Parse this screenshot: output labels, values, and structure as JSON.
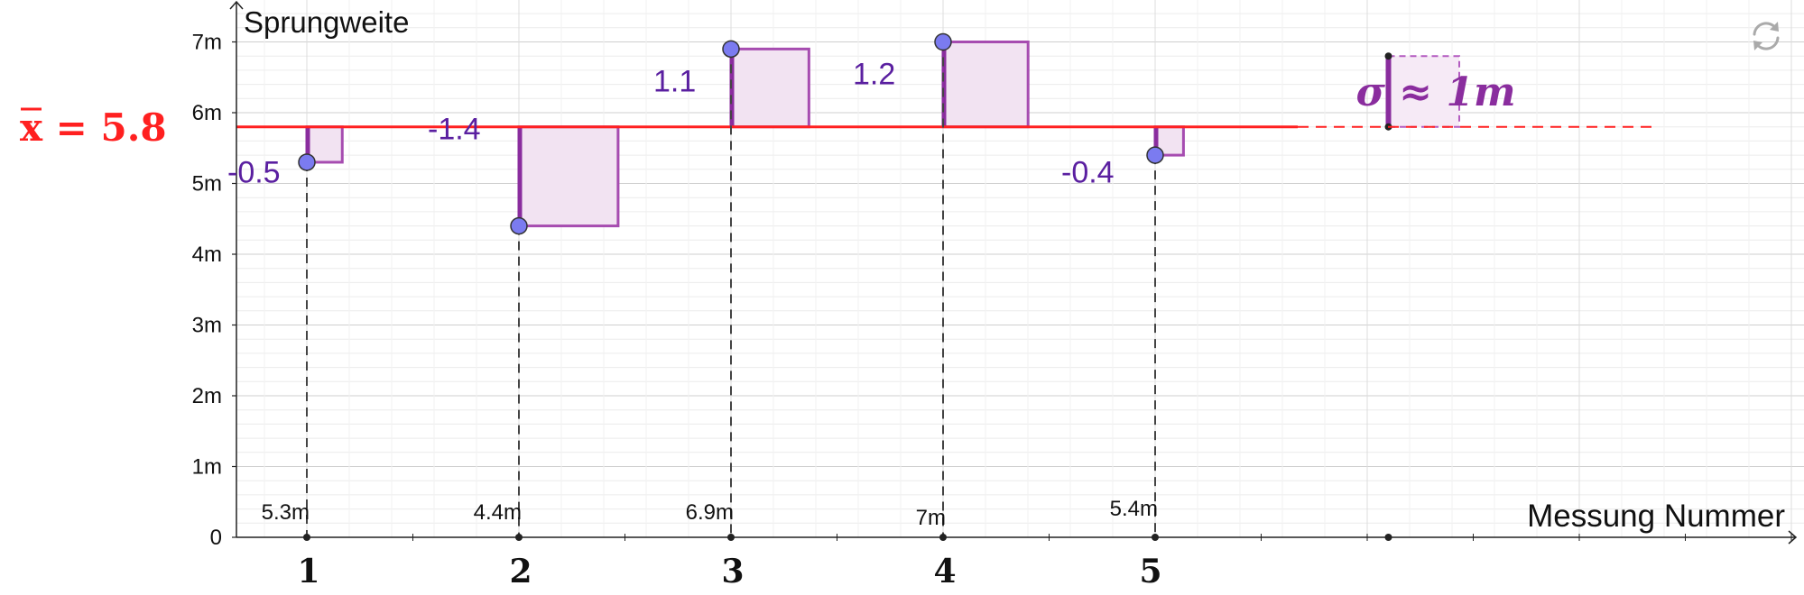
{
  "chart_data": {
    "type": "scatter",
    "ylabel": "Sprungweite",
    "xlabel": "Messung Nummer",
    "x_ticks": [
      "1",
      "2",
      "3",
      "4",
      "5"
    ],
    "y_ticks": [
      "0",
      "1m",
      "2m",
      "3m",
      "4m",
      "5m",
      "6m",
      "7m"
    ],
    "ylim": [
      0,
      7.5
    ],
    "xlim": [
      0.65,
      8.6
    ],
    "grid": true,
    "mean": {
      "value": 5.8,
      "label": "x = 5.8",
      "color": "#ff2020"
    },
    "sigma": {
      "value": 1.0,
      "label": "σ ≈ 1m",
      "x": 6.1,
      "color": "#8a2d9e"
    },
    "points": [
      {
        "x": 1,
        "y": 5.3,
        "value_label": "5.3m",
        "deviation": "-0.5"
      },
      {
        "x": 2,
        "y": 4.4,
        "value_label": "4.4m",
        "deviation": "-1.4"
      },
      {
        "x": 3,
        "y": 6.9,
        "value_label": "6.9m",
        "deviation": "1.1"
      },
      {
        "x": 4,
        "y": 7.0,
        "value_label": "7m",
        "deviation": "1.2"
      },
      {
        "x": 5,
        "y": 5.4,
        "value_label": "5.4m",
        "deviation": "-0.4"
      }
    ],
    "colors": {
      "point": "#7b7bf0",
      "square_fill": "#f2e3f2",
      "square_stroke": "#a64cb0",
      "label": "#5a1fa0"
    }
  },
  "ui": {
    "reset_icon": "refresh-icon"
  }
}
